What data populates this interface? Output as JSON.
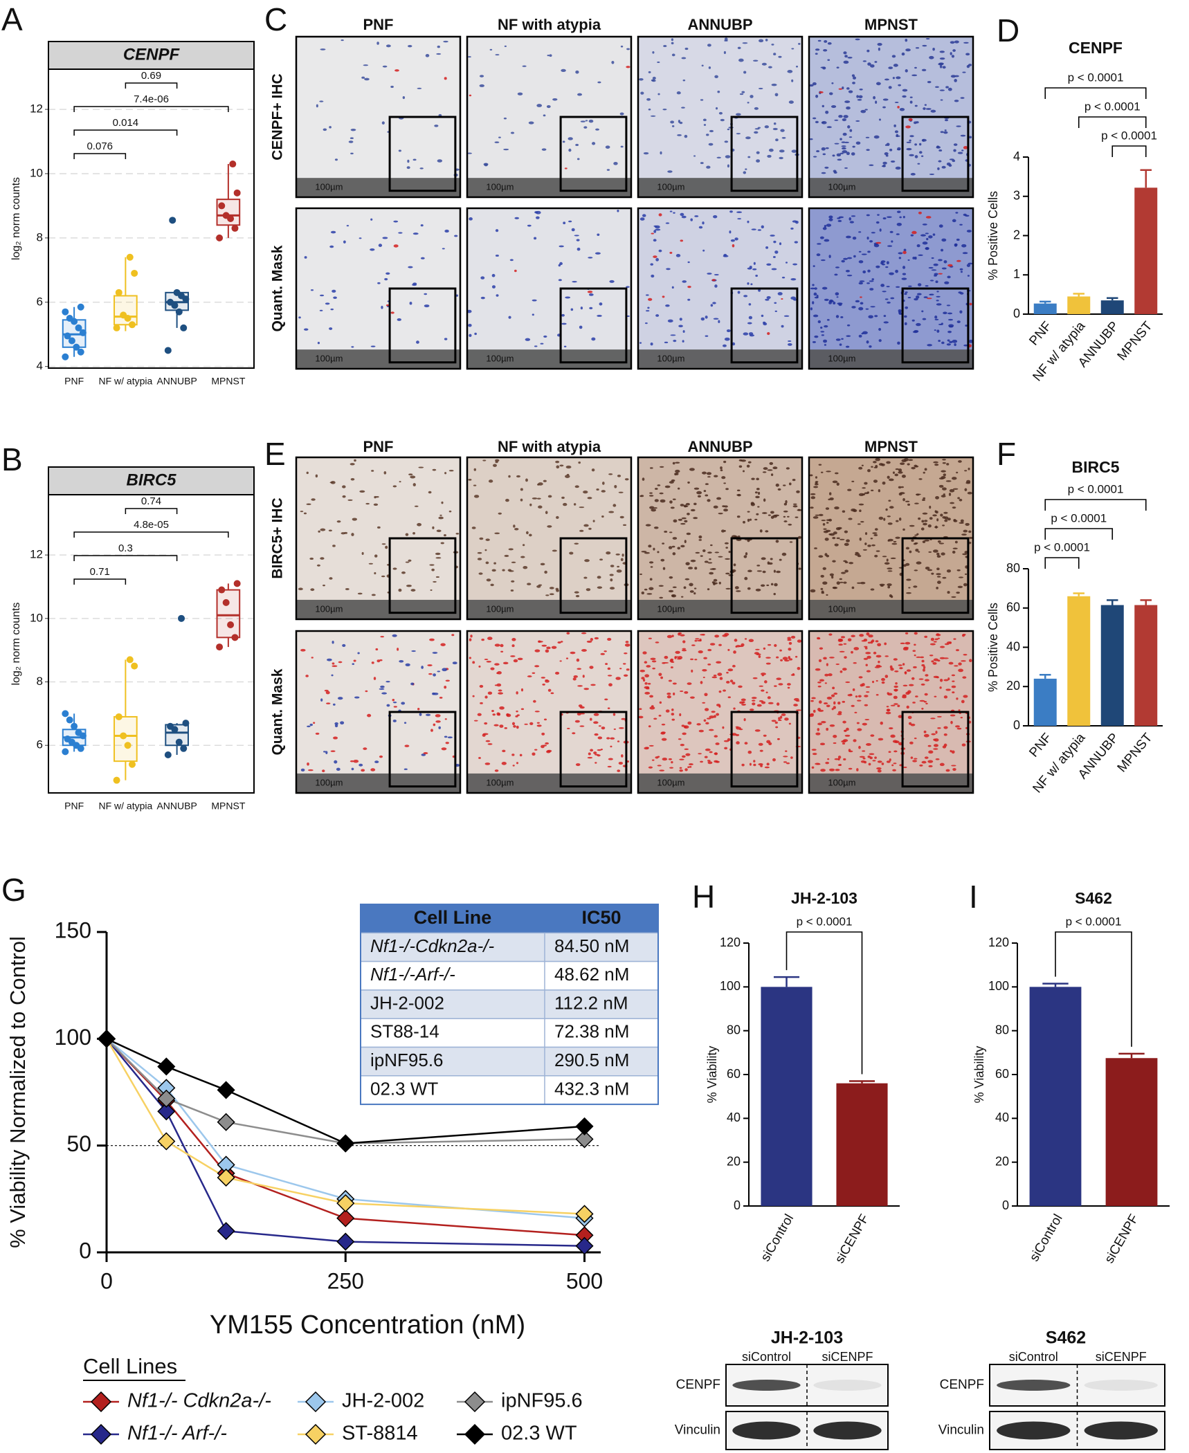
{
  "panel_letters": [
    "A",
    "B",
    "C",
    "D",
    "E",
    "F",
    "G",
    "H",
    "I"
  ],
  "ihc": [
    {
      "columns": [
        "PNF",
        "NF with atypia",
        "ANNUBP",
        "MPNST"
      ],
      "rows": [
        "CENPF+ IHC",
        "Quant. Mask"
      ],
      "scale_bar": "100µm"
    },
    {
      "columns": [
        "PNF",
        "NF with atypia",
        "ANNUBP",
        "MPNST"
      ],
      "rows": [
        "BIRC5+ IHC",
        "Quant. Mask"
      ],
      "scale_bar": "100µm"
    }
  ],
  "blots": [
    {
      "title": "JH-2-103",
      "lanes": [
        "siControl",
        "siCENPF"
      ],
      "bands": [
        "CENPF",
        "Vinculin"
      ]
    },
    {
      "title": "S462",
      "lanes": [
        "siControl",
        "siCENPF"
      ],
      "bands": [
        "CENPF",
        "Vinculin"
      ]
    }
  ],
  "chart_data": [
    {
      "type": "box",
      "title": "CENPF",
      "ylabel": "log₂ norm counts",
      "categories": [
        "PNF",
        "NF w/ atypia",
        "ANNUBP",
        "MPNST"
      ],
      "boxes": [
        {
          "color": "#2b7fd1",
          "whisker_low": 4.3,
          "q1": 4.6,
          "median": 5.0,
          "q3": 5.45,
          "whisker_high": 5.85,
          "points": [
            4.3,
            4.45,
            4.6,
            4.8,
            4.95,
            5.05,
            5.2,
            5.4,
            5.5,
            5.7,
            5.85
          ]
        },
        {
          "color": "#efc020",
          "whisker_low": 5.1,
          "q1": 5.3,
          "median": 5.55,
          "q3": 6.2,
          "whisker_high": 7.4,
          "points": [
            5.2,
            5.3,
            5.5,
            5.6,
            6.3,
            6.9,
            7.4
          ]
        },
        {
          "color": "#1e4f80",
          "whisker_low": 5.2,
          "q1": 5.75,
          "median": 6.0,
          "q3": 6.3,
          "whisker_high": 6.4,
          "points": [
            4.5,
            5.2,
            5.7,
            5.9,
            6.0,
            6.1,
            6.2,
            6.3,
            8.55
          ]
        },
        {
          "color": "#b32f2a",
          "whisker_low": 8.0,
          "q1": 8.4,
          "median": 8.7,
          "q3": 9.2,
          "whisker_high": 10.3,
          "points": [
            8.0,
            8.3,
            8.6,
            8.7,
            9.0,
            9.4,
            10.3
          ]
        }
      ],
      "ylim": [
        3.95,
        13.25
      ],
      "yticks": [
        4,
        6,
        8,
        10,
        12
      ],
      "grid": true,
      "comparisons": [
        {
          "from": 1,
          "to": 2,
          "label": "0.69"
        },
        {
          "from": 0,
          "to": 3,
          "label": "7.4e-06"
        },
        {
          "from": 0,
          "to": 2,
          "label": "0.014"
        },
        {
          "from": 0,
          "to": 1,
          "label": "0.076"
        }
      ]
    },
    {
      "type": "box",
      "title": "BIRC5",
      "ylabel": "log₂ norm counts",
      "categories": [
        "PNF",
        "NF w/ atypia",
        "ANNUBP",
        "MPNST"
      ],
      "boxes": [
        {
          "color": "#2b7fd1",
          "whisker_low": 5.8,
          "q1": 6.0,
          "median": 6.25,
          "q3": 6.5,
          "whisker_high": 7.0,
          "points": [
            5.8,
            5.9,
            6.0,
            6.1,
            6.2,
            6.3,
            6.4,
            6.6,
            6.8,
            7.0
          ]
        },
        {
          "color": "#efc020",
          "whisker_low": 4.9,
          "q1": 5.5,
          "median": 6.3,
          "q3": 6.9,
          "whisker_high": 8.7,
          "points": [
            4.9,
            5.4,
            6.0,
            6.3,
            6.9,
            8.5,
            8.7
          ]
        },
        {
          "color": "#1e4f80",
          "whisker_low": 5.7,
          "q1": 6.0,
          "median": 6.4,
          "q3": 6.65,
          "whisker_high": 6.7,
          "points": [
            5.7,
            5.9,
            6.1,
            6.5,
            6.6,
            6.7,
            10.0
          ]
        },
        {
          "color": "#b32f2a",
          "whisker_low": 9.1,
          "q1": 9.4,
          "median": 10.1,
          "q3": 10.9,
          "whisker_high": 11.1,
          "points": [
            9.1,
            9.4,
            9.8,
            10.5,
            10.9,
            11.1
          ]
        }
      ],
      "ylim": [
        4.5,
        13.9
      ],
      "yticks": [
        6,
        8,
        10,
        12
      ],
      "grid": true,
      "comparisons": [
        {
          "from": 1,
          "to": 2,
          "label": "0.74"
        },
        {
          "from": 0,
          "to": 3,
          "label": "4.8e-05"
        },
        {
          "from": 0,
          "to": 2,
          "label": "0.3"
        },
        {
          "from": 0,
          "to": 1,
          "label": "0.71"
        }
      ]
    },
    {
      "type": "bar",
      "title": "CENPF",
      "ylabel": "% Positive Cells",
      "categories": [
        "PNF",
        "NF w/ atypia",
        "ANNUBP",
        "MPNST"
      ],
      "values": [
        0.27,
        0.45,
        0.35,
        3.22
      ],
      "errors": [
        0.05,
        0.07,
        0.06,
        0.45
      ],
      "colors": [
        "#3b7dc4",
        "#f0c23b",
        "#1f4777",
        "#b23a33"
      ],
      "ylim": [
        0,
        4
      ],
      "yticks": [
        0,
        1,
        2,
        3,
        4
      ],
      "comparisons": [
        {
          "from": 0,
          "to": 3,
          "label": "p < 0.0001"
        },
        {
          "from": 1,
          "to": 3,
          "label": "p < 0.0001"
        },
        {
          "from": 2,
          "to": 3,
          "label": "p < 0.0001"
        }
      ]
    },
    {
      "type": "bar",
      "title": "BIRC5",
      "ylabel": "% Positive Cells",
      "categories": [
        "PNF",
        "NF w/ atypia",
        "ANNUBP",
        "MPNST"
      ],
      "values": [
        24,
        66,
        61.5,
        61.5
      ],
      "errors": [
        2,
        1.5,
        2.5,
        2.5
      ],
      "colors": [
        "#3b7dc4",
        "#f0c23b",
        "#1f4777",
        "#b23a33"
      ],
      "ylim": [
        0,
        80
      ],
      "yticks": [
        0,
        20,
        40,
        60,
        80
      ],
      "comparisons": [
        {
          "from": 0,
          "to": 3,
          "label": "p < 0.0001"
        },
        {
          "from": 0,
          "to": 2,
          "label": "p < 0.0001"
        },
        {
          "from": 0,
          "to": 1,
          "label": "p < 0.0001"
        }
      ]
    },
    {
      "type": "line",
      "xlabel": "YM155 Concentration (nM)",
      "ylabel": "% Viability Normalized to Control",
      "x": [
        0,
        62.5,
        125,
        250,
        500
      ],
      "xlim": [
        0,
        517
      ],
      "xticks": [
        0,
        250,
        500
      ],
      "ylim": [
        0,
        150
      ],
      "yticks": [
        0,
        50,
        100,
        150
      ],
      "reference_line": 50,
      "legend_title": "Cell Lines",
      "series": [
        {
          "name": "Nf1-/- Cdkn2a-/-",
          "color": "#b3201e",
          "values": [
            100,
            71,
            37,
            16,
            8
          ]
        },
        {
          "name": "Nf1-/- Arf-/-",
          "color": "#27288a",
          "values": [
            100,
            66,
            10,
            5,
            3
          ]
        },
        {
          "name": "JH-2-002",
          "color": "#9cc7ec",
          "values": [
            100,
            77,
            41,
            25,
            16
          ]
        },
        {
          "name": "ST-8814",
          "color": "#f7d163",
          "values": [
            100,
            52,
            35,
            23,
            18
          ]
        },
        {
          "name": "ipNF95.6",
          "color": "#8d8d8d",
          "values": [
            100,
            72,
            61,
            51,
            53
          ]
        },
        {
          "name": "02.3 WT",
          "color": "#000000",
          "values": [
            100,
            87,
            76,
            51,
            59
          ]
        }
      ],
      "table": {
        "columns": [
          "Cell Line",
          "IC50"
        ],
        "rows": [
          [
            "Nf1-/-Cdkn2a-/-",
            "84.50 nM"
          ],
          [
            "Nf1-/-Arf-/-",
            "48.62 nM"
          ],
          [
            "JH-2-002",
            "112.2 nM"
          ],
          [
            "ST88-14",
            "72.38 nM"
          ],
          [
            "ipNF95.6",
            "290.5 nM"
          ],
          [
            "02.3 WT",
            "432.3 nM"
          ]
        ]
      }
    },
    {
      "type": "bar",
      "title": "JH-2-103",
      "ylabel": "% Viability",
      "categories": [
        "siControl",
        "siCENPF"
      ],
      "values": [
        100,
        56
      ],
      "errors": [
        4.5,
        1
      ],
      "colors": [
        "#2b3582",
        "#8c1c1c"
      ],
      "ylim": [
        0,
        120
      ],
      "yticks": [
        0,
        20,
        40,
        60,
        80,
        100,
        120
      ],
      "comparisons": [
        {
          "from": 0,
          "to": 1,
          "label": "p < 0.0001"
        }
      ]
    },
    {
      "type": "bar",
      "title": "S462",
      "ylabel": "% Viability",
      "categories": [
        "siControl",
        "siCENPF"
      ],
      "values": [
        100,
        67.5
      ],
      "errors": [
        1.5,
        2
      ],
      "colors": [
        "#2b3582",
        "#8c1c1c"
      ],
      "ylim": [
        0,
        120
      ],
      "yticks": [
        0,
        20,
        40,
        60,
        80,
        100,
        120
      ],
      "comparisons": [
        {
          "from": 0,
          "to": 1,
          "label": "p < 0.0001"
        }
      ]
    }
  ]
}
